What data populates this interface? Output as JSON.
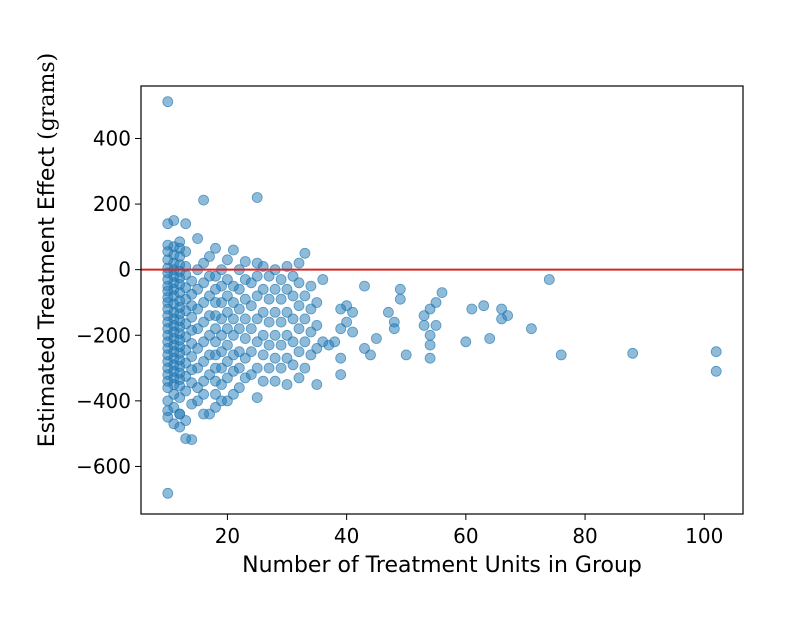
{
  "chart_data": {
    "type": "scatter",
    "xlabel": "Number of Treatment Units in Group",
    "ylabel_main": "Estimated Treatment Effect",
    "ylabel_unit": "(grams)",
    "xlim": [
      5.5,
      106.5
    ],
    "ylim": [
      -745,
      560
    ],
    "xticks": [
      20,
      40,
      60,
      80,
      100
    ],
    "yticks": [
      400,
      200,
      0,
      -200,
      -400,
      -600
    ],
    "xtick_labels": [
      "20",
      "40",
      "60",
      "80",
      "100"
    ],
    "ytick_labels": [
      "400",
      "200",
      "0",
      "−200",
      "−400",
      "−600"
    ],
    "grid": false,
    "reference_line": {
      "y": 0,
      "color": "#d62728"
    },
    "marker_color": "#1f77b4",
    "marker_alpha": 0.5,
    "points": [
      [
        10,
        512
      ],
      [
        10,
        -682
      ],
      [
        25,
        220
      ],
      [
        16,
        212
      ],
      [
        11,
        150
      ],
      [
        10,
        140
      ],
      [
        13,
        140
      ],
      [
        15,
        95
      ],
      [
        12,
        85
      ],
      [
        10,
        75
      ],
      [
        11,
        70
      ],
      [
        12,
        65
      ],
      [
        13,
        55
      ],
      [
        10,
        55
      ],
      [
        11,
        45
      ],
      [
        12,
        40
      ],
      [
        10,
        30
      ],
      [
        11,
        20
      ],
      [
        12,
        15
      ],
      [
        13,
        10
      ],
      [
        10,
        5
      ],
      [
        11,
        0
      ],
      [
        12,
        -5
      ],
      [
        10,
        -10
      ],
      [
        13,
        -15
      ],
      [
        11,
        -20
      ],
      [
        12,
        -25
      ],
      [
        10,
        -30
      ],
      [
        14,
        -35
      ],
      [
        11,
        -40
      ],
      [
        12,
        -45
      ],
      [
        10,
        -50
      ],
      [
        13,
        -55
      ],
      [
        11,
        -60
      ],
      [
        10,
        -65
      ],
      [
        12,
        -70
      ],
      [
        14,
        -75
      ],
      [
        11,
        -80
      ],
      [
        10,
        -85
      ],
      [
        13,
        -90
      ],
      [
        12,
        -95
      ],
      [
        10,
        -100
      ],
      [
        11,
        -105
      ],
      [
        14,
        -110
      ],
      [
        12,
        -115
      ],
      [
        10,
        -120
      ],
      [
        13,
        -125
      ],
      [
        11,
        -130
      ],
      [
        12,
        -135
      ],
      [
        10,
        -140
      ],
      [
        14,
        -145
      ],
      [
        11,
        -150
      ],
      [
        12,
        -155
      ],
      [
        10,
        -160
      ],
      [
        13,
        -165
      ],
      [
        11,
        -170
      ],
      [
        12,
        -175
      ],
      [
        10,
        -180
      ],
      [
        14,
        -185
      ],
      [
        11,
        -190
      ],
      [
        12,
        -195
      ],
      [
        10,
        -200
      ],
      [
        13,
        -205
      ],
      [
        11,
        -210
      ],
      [
        12,
        -215
      ],
      [
        10,
        -220
      ],
      [
        14,
        -225
      ],
      [
        11,
        -230
      ],
      [
        12,
        -235
      ],
      [
        10,
        -240
      ],
      [
        13,
        -245
      ],
      [
        11,
        -250
      ],
      [
        12,
        -255
      ],
      [
        10,
        -260
      ],
      [
        14,
        -265
      ],
      [
        11,
        -270
      ],
      [
        12,
        -275
      ],
      [
        10,
        -280
      ],
      [
        13,
        -285
      ],
      [
        11,
        -290
      ],
      [
        12,
        -295
      ],
      [
        10,
        -300
      ],
      [
        14,
        -305
      ],
      [
        11,
        -310
      ],
      [
        12,
        -315
      ],
      [
        10,
        -320
      ],
      [
        13,
        -325
      ],
      [
        11,
        -330
      ],
      [
        12,
        -335
      ],
      [
        10,
        -340
      ],
      [
        14,
        -345
      ],
      [
        11,
        -350
      ],
      [
        12,
        -355
      ],
      [
        10,
        -360
      ],
      [
        13,
        -370
      ],
      [
        11,
        -380
      ],
      [
        12,
        -390
      ],
      [
        10,
        -400
      ],
      [
        14,
        -410
      ],
      [
        11,
        -420
      ],
      [
        10,
        -430
      ],
      [
        12,
        -440
      ],
      [
        10,
        -450
      ],
      [
        13,
        -460
      ],
      [
        11,
        -470
      ],
      [
        12,
        -480
      ],
      [
        13,
        -515
      ],
      [
        14,
        -518
      ],
      [
        12,
        -440
      ],
      [
        15,
        -400
      ],
      [
        16,
        -380
      ],
      [
        15,
        -360
      ],
      [
        16,
        -340
      ],
      [
        17,
        -320
      ],
      [
        15,
        -300
      ],
      [
        16,
        -280
      ],
      [
        17,
        -260
      ],
      [
        15,
        -240
      ],
      [
        16,
        -220
      ],
      [
        17,
        -200
      ],
      [
        15,
        -180
      ],
      [
        16,
        -160
      ],
      [
        17,
        -140
      ],
      [
        15,
        -120
      ],
      [
        16,
        -100
      ],
      [
        17,
        -80
      ],
      [
        15,
        -60
      ],
      [
        16,
        -40
      ],
      [
        17,
        -20
      ],
      [
        15,
        0
      ],
      [
        16,
        20
      ],
      [
        17,
        40
      ],
      [
        16,
        -440
      ],
      [
        17,
        -440
      ],
      [
        18,
        -420
      ],
      [
        18,
        -380
      ],
      [
        18,
        -340
      ],
      [
        18,
        -300
      ],
      [
        18,
        -260
      ],
      [
        18,
        -220
      ],
      [
        18,
        -180
      ],
      [
        18,
        -140
      ],
      [
        18,
        -100
      ],
      [
        18,
        -60
      ],
      [
        18,
        -20
      ],
      [
        18,
        65
      ],
      [
        19,
        -400
      ],
      [
        19,
        -350
      ],
      [
        19,
        -300
      ],
      [
        19,
        -250
      ],
      [
        19,
        -200
      ],
      [
        19,
        -150
      ],
      [
        19,
        -100
      ],
      [
        19,
        -50
      ],
      [
        19,
        0
      ],
      [
        20,
        -400
      ],
      [
        20,
        -330
      ],
      [
        20,
        -280
      ],
      [
        20,
        -230
      ],
      [
        20,
        -180
      ],
      [
        20,
        -130
      ],
      [
        20,
        -80
      ],
      [
        20,
        -30
      ],
      [
        20,
        30
      ],
      [
        21,
        -380
      ],
      [
        21,
        -310
      ],
      [
        21,
        -260
      ],
      [
        21,
        -200
      ],
      [
        21,
        -150
      ],
      [
        21,
        -100
      ],
      [
        21,
        -50
      ],
      [
        21,
        60
      ],
      [
        22,
        -360
      ],
      [
        22,
        -300
      ],
      [
        22,
        -250
      ],
      [
        22,
        -180
      ],
      [
        22,
        -120
      ],
      [
        22,
        -60
      ],
      [
        22,
        0
      ],
      [
        23,
        -330
      ],
      [
        23,
        -270
      ],
      [
        23,
        -210
      ],
      [
        23,
        -150
      ],
      [
        23,
        -90
      ],
      [
        23,
        -30
      ],
      [
        23,
        25
      ],
      [
        24,
        -320
      ],
      [
        24,
        -250
      ],
      [
        24,
        -180
      ],
      [
        24,
        -110
      ],
      [
        24,
        -40
      ],
      [
        25,
        -390
      ],
      [
        25,
        -300
      ],
      [
        25,
        -220
      ],
      [
        25,
        -150
      ],
      [
        25,
        -80
      ],
      [
        25,
        -20
      ],
      [
        25,
        20
      ],
      [
        26,
        -340
      ],
      [
        26,
        -260
      ],
      [
        26,
        -200
      ],
      [
        26,
        -130
      ],
      [
        26,
        -60
      ],
      [
        26,
        10
      ],
      [
        27,
        -300
      ],
      [
        27,
        -230
      ],
      [
        27,
        -160
      ],
      [
        27,
        -90
      ],
      [
        27,
        -20
      ],
      [
        28,
        -340
      ],
      [
        28,
        -270
      ],
      [
        28,
        -200
      ],
      [
        28,
        -130
      ],
      [
        28,
        -60
      ],
      [
        28,
        0
      ],
      [
        29,
        -300
      ],
      [
        29,
        -230
      ],
      [
        29,
        -160
      ],
      [
        29,
        -90
      ],
      [
        29,
        -30
      ],
      [
        30,
        -350
      ],
      [
        30,
        -270
      ],
      [
        30,
        -200
      ],
      [
        30,
        -130
      ],
      [
        30,
        -60
      ],
      [
        30,
        10
      ],
      [
        31,
        -290
      ],
      [
        31,
        -220
      ],
      [
        31,
        -150
      ],
      [
        31,
        -80
      ],
      [
        31,
        -20
      ],
      [
        32,
        -330
      ],
      [
        32,
        -250
      ],
      [
        32,
        -180
      ],
      [
        32,
        -110
      ],
      [
        32,
        -40
      ],
      [
        32,
        20
      ],
      [
        33,
        -300
      ],
      [
        33,
        -220
      ],
      [
        33,
        -150
      ],
      [
        33,
        -80
      ],
      [
        33,
        50
      ],
      [
        34,
        -260
      ],
      [
        34,
        -190
      ],
      [
        34,
        -120
      ],
      [
        34,
        -50
      ],
      [
        35,
        -350
      ],
      [
        35,
        -240
      ],
      [
        35,
        -170
      ],
      [
        35,
        -100
      ],
      [
        36,
        -220
      ],
      [
        36,
        -30
      ],
      [
        37,
        -230
      ],
      [
        38,
        -220
      ],
      [
        39,
        -320
      ],
      [
        39,
        -270
      ],
      [
        39,
        -180
      ],
      [
        39,
        -120
      ],
      [
        40,
        -160
      ],
      [
        40,
        -110
      ],
      [
        41,
        -190
      ],
      [
        41,
        -130
      ],
      [
        43,
        -50
      ],
      [
        43,
        -240
      ],
      [
        44,
        -260
      ],
      [
        45,
        -210
      ],
      [
        47,
        -130
      ],
      [
        48,
        -180
      ],
      [
        48,
        -160
      ],
      [
        49,
        -90
      ],
      [
        49,
        -60
      ],
      [
        50,
        -260
      ],
      [
        53,
        -170
      ],
      [
        53,
        -140
      ],
      [
        54,
        -270
      ],
      [
        54,
        -230
      ],
      [
        54,
        -200
      ],
      [
        54,
        -120
      ],
      [
        55,
        -170
      ],
      [
        55,
        -100
      ],
      [
        56,
        -70
      ],
      [
        60,
        -220
      ],
      [
        61,
        -120
      ],
      [
        63,
        -110
      ],
      [
        64,
        -210
      ],
      [
        66,
        -150
      ],
      [
        66,
        -120
      ],
      [
        67,
        -140
      ],
      [
        71,
        -180
      ],
      [
        74,
        -30
      ],
      [
        76,
        -260
      ],
      [
        88,
        -255
      ],
      [
        102,
        -250
      ],
      [
        102,
        -310
      ]
    ]
  }
}
